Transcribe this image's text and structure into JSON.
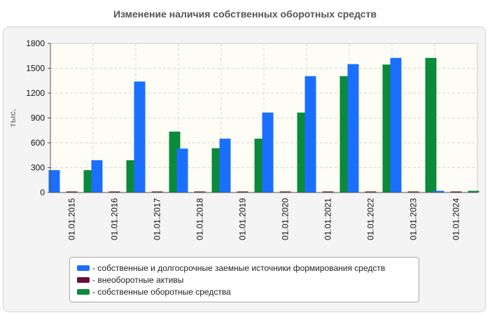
{
  "chart_data": {
    "type": "bar",
    "title": "Изменение наличия собственных оборотных средств",
    "ylabel": "тыс.",
    "xlabel": "",
    "ylim": [
      0,
      1800
    ],
    "yticks": [
      0,
      300,
      600,
      900,
      1200,
      1500,
      1800
    ],
    "grid": true,
    "legend_position": "bottom",
    "categories": [
      "01.01.2015",
      "01.01.2016",
      "01.01.2017",
      "01.01.2018",
      "01.01.2019",
      "01.01.2020",
      "01.01.2021",
      "01.01.2022",
      "01.01.2023",
      "01.01.2024"
    ],
    "series": [
      {
        "name": "собственные и долгосрочные заемные источники формирования средств",
        "color": "#1a6fff",
        "values": [
          270,
          390,
          1340,
          530,
          650,
          965,
          1405,
          1550,
          1625,
          20
        ]
      },
      {
        "name": "внеоборотные активы",
        "color": "#6b0f3a",
        "values": [
          5,
          5,
          5,
          5,
          5,
          5,
          5,
          5,
          5,
          5
        ]
      },
      {
        "name": "собственные оборотные средства",
        "color": "#0a8a3a",
        "values": [
          270,
          390,
          735,
          535,
          650,
          965,
          1405,
          1545,
          1625,
          20
        ]
      }
    ]
  }
}
